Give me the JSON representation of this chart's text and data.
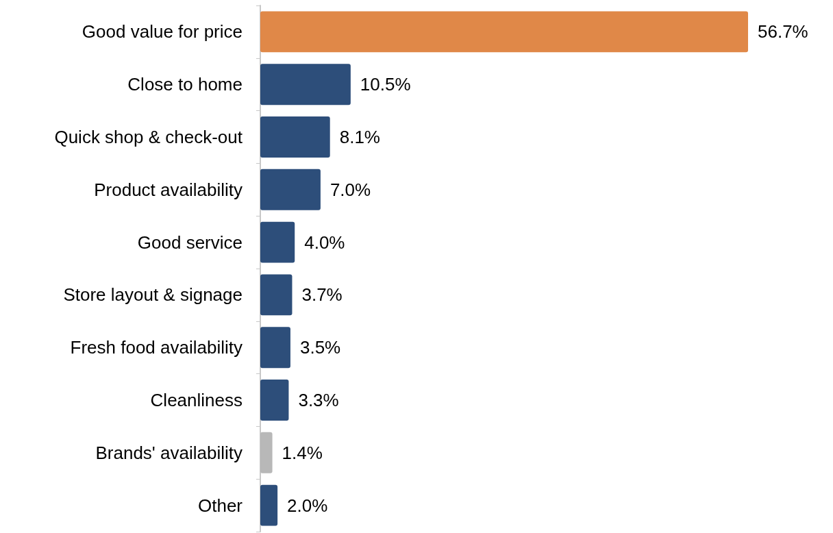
{
  "chart_data": {
    "type": "bar",
    "orientation": "horizontal",
    "categories": [
      "Good value for price",
      "Close to home",
      "Quick shop & check-out",
      "Product availability",
      "Good service",
      "Store layout & signage",
      "Fresh food availability",
      "Cleanliness",
      "Brands' availability",
      "Other"
    ],
    "values": [
      56.7,
      10.5,
      8.1,
      7.0,
      4.0,
      3.7,
      3.5,
      3.3,
      1.4,
      2.0
    ],
    "value_labels": [
      "56.7%",
      "10.5%",
      "8.1%",
      "7.0%",
      "4.0%",
      "3.7%",
      "3.5%",
      "3.3%",
      "1.4%",
      "2.0%"
    ],
    "colors": [
      "#e08848",
      "#2d4e7a",
      "#2d4e7a",
      "#2d4e7a",
      "#2d4e7a",
      "#2d4e7a",
      "#2d4e7a",
      "#2d4e7a",
      "#b8b8b8",
      "#2d4e7a"
    ]
  }
}
